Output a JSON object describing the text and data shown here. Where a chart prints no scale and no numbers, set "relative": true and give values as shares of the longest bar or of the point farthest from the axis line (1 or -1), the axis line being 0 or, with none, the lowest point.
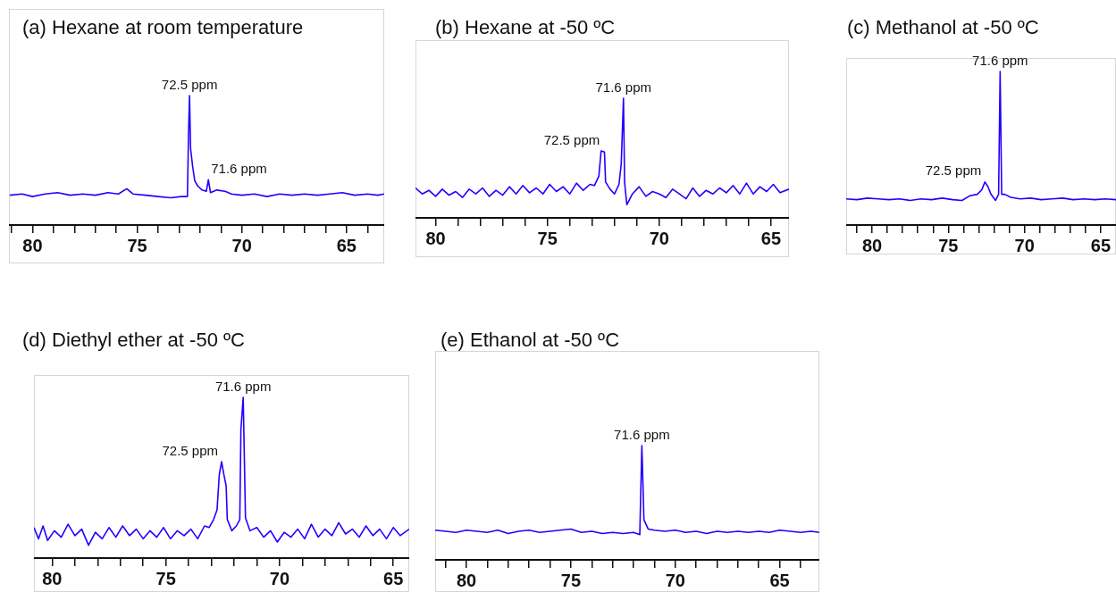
{
  "chart_data": [
    {
      "type": "line",
      "title": "(a) Hexane at room temperature",
      "relative": true,
      "color": "#2200ff",
      "legend": false,
      "grid": false,
      "marker": "none",
      "line_style": "solid",
      "xlim": [
        81.1,
        63.2
      ],
      "xticks": [
        {
          "value": 81,
          "label": null
        },
        80,
        {
          "value": 79,
          "label": null
        },
        {
          "value": 78,
          "label": null
        },
        {
          "value": 77,
          "label": null
        },
        {
          "value": 76,
          "label": null
        },
        75,
        {
          "value": 74,
          "label": null
        },
        {
          "value": 73,
          "label": null
        },
        {
          "value": 72,
          "label": null
        },
        {
          "value": 71,
          "label": null
        },
        70,
        {
          "value": 69,
          "label": null
        },
        {
          "value": 68,
          "label": null
        },
        {
          "value": 67,
          "label": null
        },
        {
          "value": 66,
          "label": null
        },
        65,
        {
          "value": 64,
          "label": null
        }
      ],
      "x": [
        81.1,
        80.5,
        80,
        79.4,
        78.8,
        78.2,
        77.6,
        77,
        76.4,
        75.9,
        75.5,
        75.2,
        74.6,
        74,
        73.4,
        72.9,
        72.6,
        72.55,
        72.5,
        72.45,
        72.35,
        72.25,
        72.1,
        71.9,
        71.7,
        71.6,
        71.5,
        71.2,
        70.8,
        70.5,
        70,
        69.4,
        68.8,
        68.2,
        67.6,
        67,
        66.4,
        65.8,
        65.2,
        64.6,
        64,
        63.5,
        63.2
      ],
      "values": [
        0.23,
        0.24,
        0.22,
        0.24,
        0.25,
        0.23,
        0.24,
        0.23,
        0.25,
        0.24,
        0.28,
        0.24,
        0.23,
        0.22,
        0.21,
        0.22,
        0.22,
        0.7,
        1.0,
        0.59,
        0.45,
        0.34,
        0.3,
        0.27,
        0.26,
        0.35,
        0.25,
        0.27,
        0.26,
        0.24,
        0.23,
        0.24,
        0.22,
        0.24,
        0.23,
        0.24,
        0.23,
        0.24,
        0.25,
        0.23,
        0.24,
        0.23,
        0.24
      ],
      "annotations": [
        {
          "text": "72.5 ppm",
          "x": 72.5,
          "y": 1.0
        },
        {
          "text": "71.6 ppm",
          "x": 71.6,
          "y": 0.35
        }
      ]
    },
    {
      "type": "line",
      "title": "(b) Hexane at -50 ºC",
      "relative": true,
      "color": "#2200ff",
      "legend": false,
      "grid": false,
      "marker": "none",
      "line_style": "solid",
      "xlim": [
        80.9,
        64.2
      ],
      "xticks": [
        80,
        {
          "value": 79,
          "label": null
        },
        {
          "value": 78,
          "label": null
        },
        {
          "value": 77,
          "label": null
        },
        {
          "value": 76,
          "label": null
        },
        75,
        {
          "value": 74,
          "label": null
        },
        {
          "value": 73,
          "label": null
        },
        {
          "value": 72,
          "label": null
        },
        {
          "value": 71,
          "label": null
        },
        70,
        {
          "value": 69,
          "label": null
        },
        {
          "value": 68,
          "label": null
        },
        {
          "value": 67,
          "label": null
        },
        {
          "value": 66,
          "label": null
        },
        65
      ],
      "x": [
        80.9,
        80.6,
        80.3,
        80,
        79.7,
        79.4,
        79.1,
        78.8,
        78.5,
        78.2,
        77.9,
        77.6,
        77.3,
        77,
        76.7,
        76.4,
        76.1,
        75.8,
        75.5,
        75.2,
        74.9,
        74.6,
        74.3,
        74,
        73.7,
        73.4,
        73.1,
        72.9,
        72.7,
        72.6,
        72.45,
        72.4,
        72.2,
        72,
        71.8,
        71.7,
        71.6,
        71.55,
        71.45,
        71.2,
        70.9,
        70.6,
        70.3,
        70,
        69.7,
        69.4,
        69.1,
        68.8,
        68.5,
        68.2,
        67.9,
        67.6,
        67.3,
        67,
        66.7,
        66.4,
        66.1,
        65.8,
        65.5,
        65.2,
        64.9,
        64.6,
        64.2
      ],
      "values": [
        0.25,
        0.2,
        0.23,
        0.18,
        0.24,
        0.19,
        0.22,
        0.17,
        0.24,
        0.2,
        0.25,
        0.18,
        0.23,
        0.19,
        0.26,
        0.2,
        0.27,
        0.21,
        0.25,
        0.2,
        0.28,
        0.22,
        0.26,
        0.2,
        0.29,
        0.23,
        0.28,
        0.27,
        0.35,
        0.56,
        0.55,
        0.3,
        0.24,
        0.2,
        0.28,
        0.45,
        1.0,
        0.3,
        0.11,
        0.2,
        0.26,
        0.18,
        0.22,
        0.2,
        0.17,
        0.24,
        0.2,
        0.16,
        0.25,
        0.18,
        0.23,
        0.2,
        0.25,
        0.21,
        0.27,
        0.2,
        0.29,
        0.2,
        0.26,
        0.22,
        0.28,
        0.21,
        0.24
      ],
      "annotations": [
        {
          "text": "72.5 ppm",
          "x": 72.5,
          "y": 0.56
        },
        {
          "text": "71.6 ppm",
          "x": 71.6,
          "y": 1.0
        }
      ]
    },
    {
      "type": "line",
      "title": "(c) Methanol at -50 ºC",
      "relative": true,
      "color": "#2200ff",
      "legend": false,
      "grid": false,
      "marker": "none",
      "line_style": "solid",
      "xlim": [
        81.7,
        64.0
      ],
      "xticks": [
        {
          "value": 81,
          "label": null
        },
        80,
        {
          "value": 79,
          "label": null
        },
        {
          "value": 78,
          "label": null
        },
        {
          "value": 77,
          "label": null
        },
        {
          "value": 76,
          "label": null
        },
        75,
        {
          "value": 74,
          "label": null
        },
        {
          "value": 73,
          "label": null
        },
        {
          "value": 72,
          "label": null
        },
        {
          "value": 71,
          "label": null
        },
        70,
        {
          "value": 69,
          "label": null
        },
        {
          "value": 68,
          "label": null
        },
        {
          "value": 67,
          "label": null
        },
        {
          "value": 66,
          "label": null
        },
        65
      ],
      "x": [
        81.7,
        81,
        80.3,
        79.6,
        78.9,
        78.2,
        77.5,
        76.8,
        76.1,
        75.4,
        74.7,
        74.1,
        73.6,
        73.1,
        72.8,
        72.6,
        72.4,
        72.2,
        71.9,
        71.7,
        71.6,
        71.5,
        71.3,
        70.9,
        70.3,
        69.6,
        68.9,
        68.2,
        67.5,
        66.8,
        66.1,
        65.4,
        64.7,
        64.0
      ],
      "values": [
        0.17,
        0.165,
        0.175,
        0.17,
        0.165,
        0.17,
        0.16,
        0.17,
        0.165,
        0.175,
        0.165,
        0.16,
        0.19,
        0.2,
        0.23,
        0.28,
        0.25,
        0.2,
        0.16,
        0.2,
        1.0,
        0.2,
        0.2,
        0.18,
        0.17,
        0.175,
        0.165,
        0.17,
        0.175,
        0.165,
        0.17,
        0.165,
        0.17,
        0.165
      ],
      "annotations": [
        {
          "text": "72.5 ppm",
          "x": 72.6,
          "y": 0.28
        },
        {
          "text": "71.6 ppm",
          "x": 71.6,
          "y": 1.0
        }
      ]
    },
    {
      "type": "line",
      "title": "(d) Diethyl ether at -50 ºC",
      "relative": true,
      "color": "#2200ff",
      "legend": false,
      "grid": false,
      "marker": "none",
      "line_style": "solid",
      "xlim": [
        80.8,
        64.3
      ],
      "xticks": [
        80,
        {
          "value": 79,
          "label": null
        },
        {
          "value": 78,
          "label": null
        },
        {
          "value": 77,
          "label": null
        },
        {
          "value": 76,
          "label": null
        },
        75,
        {
          "value": 74,
          "label": null
        },
        {
          "value": 73,
          "label": null
        },
        {
          "value": 72,
          "label": null
        },
        {
          "value": 71,
          "label": null
        },
        70,
        {
          "value": 69,
          "label": null
        },
        {
          "value": 68,
          "label": null
        },
        {
          "value": 67,
          "label": null
        },
        {
          "value": 66,
          "label": null
        },
        65
      ],
      "x": [
        80.8,
        80.6,
        80.4,
        80.2,
        79.9,
        79.6,
        79.3,
        79,
        78.7,
        78.4,
        78.1,
        77.8,
        77.5,
        77.2,
        76.9,
        76.6,
        76.3,
        76,
        75.7,
        75.4,
        75.1,
        74.8,
        74.5,
        74.2,
        73.9,
        73.6,
        73.3,
        73.1,
        72.9,
        72.75,
        72.65,
        72.55,
        72.45,
        72.35,
        72.3,
        72.1,
        71.9,
        71.75,
        71.7,
        71.6,
        71.5,
        71.3,
        71,
        70.7,
        70.4,
        70.1,
        69.8,
        69.5,
        69.2,
        68.9,
        68.6,
        68.3,
        68,
        67.7,
        67.4,
        67.1,
        66.8,
        66.5,
        66.2,
        65.9,
        65.6,
        65.3,
        65,
        64.7,
        64.3
      ],
      "values": [
        0.19,
        0.12,
        0.2,
        0.11,
        0.17,
        0.13,
        0.21,
        0.14,
        0.18,
        0.08,
        0.16,
        0.12,
        0.19,
        0.13,
        0.2,
        0.14,
        0.18,
        0.12,
        0.17,
        0.13,
        0.19,
        0.12,
        0.17,
        0.14,
        0.18,
        0.12,
        0.2,
        0.19,
        0.24,
        0.3,
        0.52,
        0.6,
        0.52,
        0.45,
        0.24,
        0.17,
        0.2,
        0.24,
        0.8,
        1.0,
        0.25,
        0.17,
        0.19,
        0.13,
        0.17,
        0.1,
        0.16,
        0.13,
        0.18,
        0.12,
        0.21,
        0.13,
        0.18,
        0.14,
        0.22,
        0.15,
        0.18,
        0.13,
        0.2,
        0.14,
        0.18,
        0.12,
        0.19,
        0.14,
        0.18
      ],
      "annotations": [
        {
          "text": "72.5 ppm",
          "x": 72.55,
          "y": 0.6
        },
        {
          "text": "71.6 ppm",
          "x": 71.6,
          "y": 1.0
        }
      ]
    },
    {
      "type": "line",
      "title": "(e) Ethanol at -50 ºC",
      "relative": true,
      "color": "#2200ff",
      "legend": false,
      "grid": false,
      "marker": "none",
      "line_style": "solid",
      "xlim": [
        81.5,
        63.1
      ],
      "xticks": [
        {
          "value": 81,
          "label": null
        },
        80,
        {
          "value": 79,
          "label": null
        },
        {
          "value": 78,
          "label": null
        },
        {
          "value": 77,
          "label": null
        },
        {
          "value": 76,
          "label": null
        },
        75,
        {
          "value": 74,
          "label": null
        },
        {
          "value": 73,
          "label": null
        },
        {
          "value": 72,
          "label": null
        },
        {
          "value": 71,
          "label": null
        },
        70,
        {
          "value": 69,
          "label": null
        },
        {
          "value": 68,
          "label": null
        },
        {
          "value": 67,
          "label": null
        },
        {
          "value": 66,
          "label": null
        },
        65,
        {
          "value": 64,
          "label": null
        }
      ],
      "x": [
        81.5,
        81,
        80.5,
        80,
        79.5,
        79,
        78.5,
        78,
        77.5,
        77,
        76.5,
        76,
        75.5,
        75,
        74.5,
        74,
        73.5,
        73,
        72.5,
        72,
        71.7,
        71.6,
        71.5,
        71.3,
        71,
        70.5,
        70,
        69.5,
        69,
        68.5,
        68,
        67.5,
        67,
        66.5,
        66,
        65.5,
        65,
        64.5,
        64,
        63.5,
        63.1
      ],
      "values": [
        0.26,
        0.25,
        0.24,
        0.26,
        0.25,
        0.24,
        0.26,
        0.23,
        0.25,
        0.26,
        0.24,
        0.25,
        0.26,
        0.27,
        0.24,
        0.25,
        0.23,
        0.24,
        0.23,
        0.24,
        0.22,
        1.0,
        0.35,
        0.27,
        0.26,
        0.25,
        0.26,
        0.24,
        0.25,
        0.23,
        0.25,
        0.24,
        0.25,
        0.24,
        0.25,
        0.24,
        0.26,
        0.25,
        0.24,
        0.25,
        0.24
      ],
      "annotations": [
        {
          "text": "71.6 ppm",
          "x": 71.6,
          "y": 1.0
        }
      ]
    }
  ]
}
